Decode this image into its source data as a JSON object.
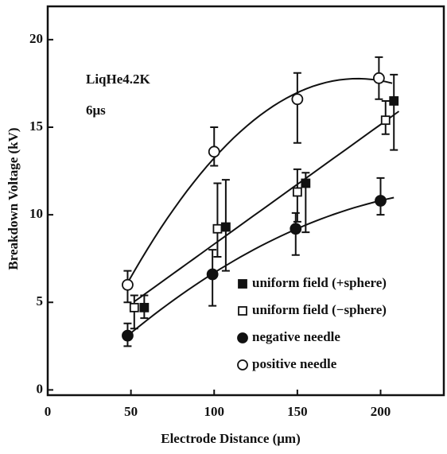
{
  "chart_data": {
    "type": "scatter",
    "x_label": "Electrode Distance (μm)",
    "y_label": "Breakdown Voltage (kV)",
    "annotations": [
      "LiqHe4.2K",
      "6μs"
    ],
    "xlim": [
      0,
      238
    ],
    "xticks": [
      0,
      50,
      100,
      150,
      200
    ],
    "ylim": [
      -0.3,
      21.9
    ],
    "yticks": [
      0,
      5,
      10,
      15,
      20
    ],
    "legend": "lower right",
    "series": [
      {
        "name": "uniform field (+sphere)",
        "color": "#111111",
        "marker": "square",
        "filled": true,
        "fit": "none",
        "x": [
          58,
          107,
          155,
          208
        ],
        "values": [
          4.7,
          9.3,
          11.8,
          16.5
        ],
        "err_low": [
          0.6,
          2.5,
          2.8,
          2.8
        ],
        "err_high": [
          0.7,
          2.7,
          0.6,
          1.5
        ]
      },
      {
        "name": "uniform field (−sphere)",
        "color": "#111111",
        "marker": "square",
        "filled": false,
        "fit": "linear",
        "x": [
          52,
          102,
          150,
          203
        ],
        "values": [
          4.7,
          9.2,
          11.3,
          15.4
        ],
        "err_low": [
          1.2,
          1.6,
          1.7,
          0.8
        ],
        "err_high": [
          0.7,
          2.6,
          1.3,
          1.1
        ]
      },
      {
        "name": "negative needle",
        "color": "#111111",
        "marker": "circle",
        "filled": true,
        "fit": "quadratic",
        "x": [
          48,
          99,
          149,
          200
        ],
        "values": [
          3.1,
          6.6,
          9.2,
          10.8
        ],
        "err_low": [
          0.6,
          1.8,
          1.5,
          0.8
        ],
        "err_high": [
          0.7,
          1.4,
          0.9,
          1.3
        ]
      },
      {
        "name": "positive needle",
        "color": "#111111",
        "marker": "circle",
        "filled": false,
        "fit": "quadratic",
        "x": [
          48,
          100,
          150,
          199
        ],
        "values": [
          6.0,
          13.6,
          16.6,
          17.8
        ],
        "err_low": [
          1.0,
          0.8,
          2.5,
          1.2
        ],
        "err_high": [
          0.8,
          1.4,
          1.5,
          1.2
        ]
      }
    ]
  }
}
